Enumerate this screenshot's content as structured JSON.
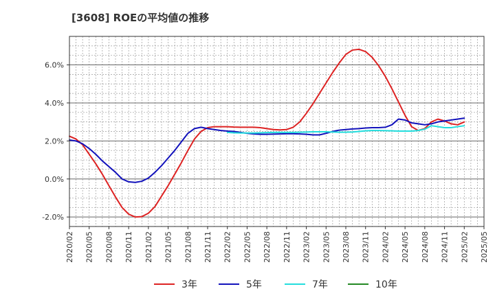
{
  "chart_data": {
    "type": "line",
    "title": "[3608]  ROEの平均値の推移",
    "xlabel": "",
    "ylabel": "",
    "ylim": [
      -2.5,
      7.5
    ],
    "yticks": [
      -2.0,
      0.0,
      2.0,
      4.0,
      6.0
    ],
    "ytick_labels": [
      "-2.0%",
      "0.0%",
      "2.0%",
      "4.0%",
      "6.0%"
    ],
    "x_range": [
      "2020-02",
      "2025-05"
    ],
    "xtick_labels": [
      "2020/02",
      "2020/05",
      "2020/08",
      "2020/11",
      "2021/02",
      "2021/05",
      "2021/08",
      "2021/11",
      "2022/02",
      "2022/05",
      "2022/08",
      "2022/11",
      "2023/02",
      "2023/05",
      "2023/08",
      "2023/11",
      "2024/02",
      "2024/05",
      "2024/08",
      "2024/11",
      "2025/02",
      "2025/05"
    ],
    "grid": true,
    "legend_position": "bottom",
    "series": [
      {
        "name": "3年",
        "color": "#dd2222",
        "x": [
          "2020-02",
          "2020-03",
          "2020-04",
          "2020-05",
          "2020-06",
          "2020-07",
          "2020-08",
          "2020-09",
          "2020-10",
          "2020-11",
          "2020-12",
          "2021-01",
          "2021-02",
          "2021-03",
          "2021-04",
          "2021-05",
          "2021-06",
          "2021-07",
          "2021-08",
          "2021-09",
          "2021-10",
          "2021-11",
          "2021-12",
          "2022-01",
          "2022-02",
          "2022-03",
          "2022-04",
          "2022-05",
          "2022-06",
          "2022-07",
          "2022-08",
          "2022-09",
          "2022-10",
          "2022-11",
          "2022-12",
          "2023-01",
          "2023-02",
          "2023-03",
          "2023-04",
          "2023-05",
          "2023-06",
          "2023-07",
          "2023-08",
          "2023-09",
          "2023-10",
          "2023-11",
          "2023-12",
          "2024-01",
          "2024-02",
          "2024-03",
          "2024-04",
          "2024-05",
          "2024-06",
          "2024-07",
          "2024-08",
          "2024-09",
          "2024-10",
          "2024-11",
          "2024-12",
          "2025-01",
          "2025-02"
        ],
        "values": [
          2.25,
          2.1,
          1.8,
          1.3,
          0.8,
          0.25,
          -0.35,
          -0.95,
          -1.5,
          -1.85,
          -2.0,
          -1.98,
          -1.8,
          -1.45,
          -0.9,
          -0.35,
          0.25,
          0.85,
          1.5,
          2.1,
          2.5,
          2.7,
          2.75,
          2.75,
          2.75,
          2.73,
          2.72,
          2.72,
          2.72,
          2.7,
          2.65,
          2.6,
          2.58,
          2.6,
          2.72,
          3.0,
          3.45,
          3.95,
          4.5,
          5.05,
          5.6,
          6.1,
          6.55,
          6.78,
          6.82,
          6.7,
          6.4,
          5.95,
          5.4,
          4.75,
          4.05,
          3.35,
          2.75,
          2.55,
          2.65,
          3.0,
          3.15,
          3.05,
          2.9,
          2.85,
          3.0
        ]
      },
      {
        "name": "5年",
        "color": "#1111bb",
        "x": [
          "2020-02",
          "2020-03",
          "2020-04",
          "2020-05",
          "2020-06",
          "2020-07",
          "2020-08",
          "2020-09",
          "2020-10",
          "2020-11",
          "2020-12",
          "2021-01",
          "2021-02",
          "2021-03",
          "2021-04",
          "2021-05",
          "2021-06",
          "2021-07",
          "2021-08",
          "2021-09",
          "2021-10",
          "2021-11",
          "2021-12",
          "2022-01",
          "2022-02",
          "2022-03",
          "2022-04",
          "2022-05",
          "2022-06",
          "2022-07",
          "2022-08",
          "2022-09",
          "2022-10",
          "2022-11",
          "2022-12",
          "2023-01",
          "2023-02",
          "2023-03",
          "2023-04",
          "2023-05",
          "2023-06",
          "2023-07",
          "2023-08",
          "2023-09",
          "2023-10",
          "2023-11",
          "2023-12",
          "2024-01",
          "2024-02",
          "2024-03",
          "2024-04",
          "2024-05",
          "2024-06",
          "2024-07",
          "2024-08",
          "2024-09",
          "2024-10",
          "2024-11",
          "2024-12",
          "2025-01",
          "2025-02"
        ],
        "values": [
          2.05,
          2.0,
          1.85,
          1.6,
          1.3,
          0.95,
          0.65,
          0.35,
          0.0,
          -0.15,
          -0.18,
          -0.12,
          0.05,
          0.35,
          0.7,
          1.1,
          1.5,
          1.95,
          2.4,
          2.65,
          2.72,
          2.65,
          2.6,
          2.55,
          2.52,
          2.5,
          2.45,
          2.4,
          2.37,
          2.35,
          2.35,
          2.36,
          2.37,
          2.38,
          2.38,
          2.37,
          2.35,
          2.32,
          2.32,
          2.4,
          2.5,
          2.57,
          2.6,
          2.63,
          2.65,
          2.68,
          2.7,
          2.7,
          2.72,
          2.85,
          3.15,
          3.1,
          2.95,
          2.9,
          2.85,
          2.9,
          3.0,
          3.05,
          3.1,
          3.15,
          3.2
        ]
      },
      {
        "name": "7年",
        "color": "#22dddd",
        "x": [
          "2022-02",
          "2022-03",
          "2022-04",
          "2022-05",
          "2022-06",
          "2022-07",
          "2022-08",
          "2022-09",
          "2022-10",
          "2022-11",
          "2022-12",
          "2023-01",
          "2023-02",
          "2023-03",
          "2023-04",
          "2023-05",
          "2023-06",
          "2023-07",
          "2023-08",
          "2023-09",
          "2023-10",
          "2023-11",
          "2023-12",
          "2024-01",
          "2024-02",
          "2024-03",
          "2024-04",
          "2024-05",
          "2024-06",
          "2024-07",
          "2024-08",
          "2024-09",
          "2024-10",
          "2024-11",
          "2024-12",
          "2025-01",
          "2025-02"
        ],
        "values": [
          2.45,
          2.43,
          2.42,
          2.42,
          2.42,
          2.43,
          2.44,
          2.45,
          2.45,
          2.45,
          2.45,
          2.46,
          2.47,
          2.48,
          2.48,
          2.48,
          2.47,
          2.46,
          2.46,
          2.47,
          2.5,
          2.53,
          2.55,
          2.55,
          2.54,
          2.53,
          2.52,
          2.52,
          2.52,
          2.55,
          2.62,
          2.8,
          2.75,
          2.7,
          2.7,
          2.75,
          2.8
        ]
      },
      {
        "name": "10年",
        "color": "#228822",
        "x": [],
        "values": []
      }
    ]
  }
}
